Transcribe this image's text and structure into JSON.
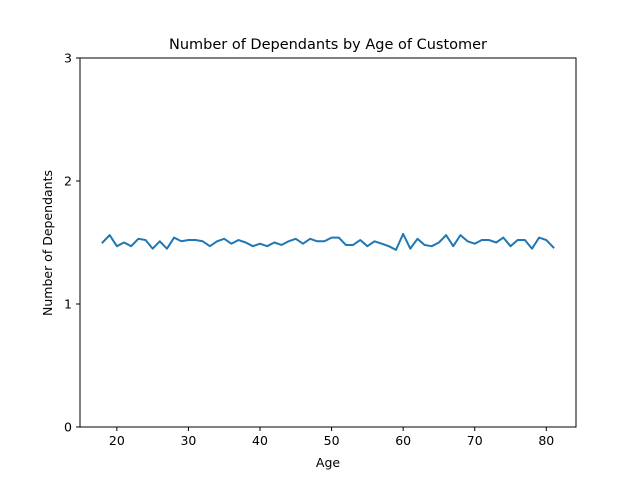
{
  "chart_data": {
    "type": "line",
    "title": "Number of Dependants by Age of Customer",
    "xlabel": "Age",
    "ylabel": "Number of Dependants",
    "xlim": [
      14.85,
      84.15
    ],
    "ylim": [
      0,
      3
    ],
    "xticks": [
      20,
      30,
      40,
      50,
      60,
      70,
      80
    ],
    "yticks": [
      0,
      1,
      2,
      3
    ],
    "grid": false,
    "series": [
      {
        "color": "#1f77b4",
        "x": [
          18,
          19,
          20,
          21,
          22,
          23,
          24,
          25,
          26,
          27,
          28,
          29,
          30,
          31,
          32,
          33,
          34,
          35,
          36,
          37,
          38,
          39,
          40,
          41,
          42,
          43,
          44,
          45,
          46,
          47,
          48,
          49,
          50,
          51,
          52,
          53,
          54,
          55,
          56,
          57,
          58,
          59,
          60,
          61,
          62,
          63,
          64,
          65,
          66,
          67,
          68,
          69,
          70,
          71,
          72,
          73,
          74,
          75,
          76,
          77,
          78,
          79,
          80,
          81
        ],
        "y": [
          1.5,
          1.56,
          1.47,
          1.5,
          1.47,
          1.53,
          1.52,
          1.45,
          1.51,
          1.45,
          1.54,
          1.51,
          1.52,
          1.52,
          1.51,
          1.47,
          1.51,
          1.53,
          1.49,
          1.52,
          1.5,
          1.47,
          1.49,
          1.47,
          1.5,
          1.48,
          1.51,
          1.53,
          1.49,
          1.53,
          1.51,
          1.51,
          1.54,
          1.54,
          1.48,
          1.48,
          1.52,
          1.47,
          1.51,
          1.49,
          1.47,
          1.44,
          1.57,
          1.45,
          1.53,
          1.48,
          1.47,
          1.5,
          1.56,
          1.47,
          1.56,
          1.51,
          1.49,
          1.52,
          1.52,
          1.5,
          1.54,
          1.47,
          1.52,
          1.52,
          1.45,
          1.54,
          1.52,
          1.46
        ]
      }
    ]
  }
}
